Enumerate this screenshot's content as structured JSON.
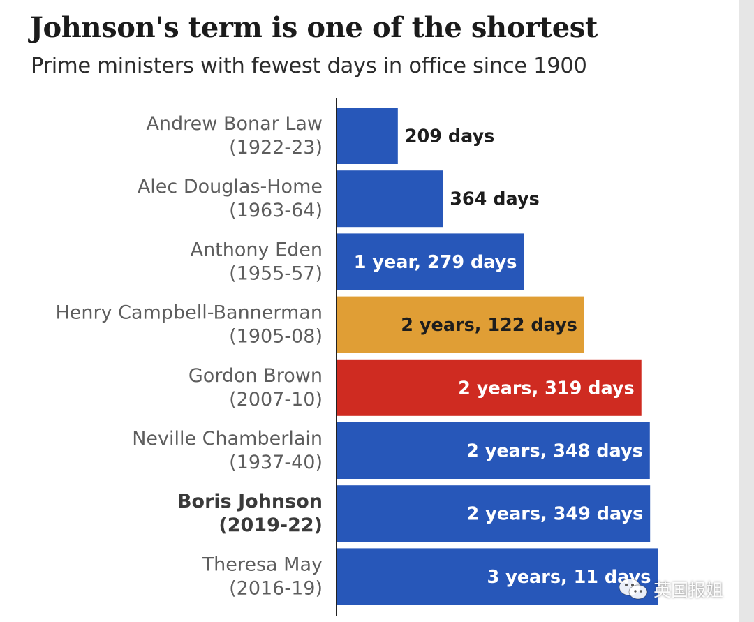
{
  "title": "Johnson's term is one of the shortest",
  "subtitle": "Prime ministers with fewest days in office since 1900",
  "colors": {
    "blue": "#2757b9",
    "amber": "#e09e35",
    "red": "#cf2b21",
    "axis": "#222222",
    "label_dark": "#1d1d1d",
    "label_light": "#ffffff"
  },
  "watermark": {
    "icon": "wechat-logo-icon",
    "text": "英国报姐"
  },
  "chart_data": {
    "type": "bar",
    "orientation": "horizontal",
    "unit": "days",
    "xlim": [
      0,
      1300
    ],
    "grid": false,
    "categories": [
      {
        "name": "Andrew Bonar Law",
        "period": "(1922-23)",
        "days": 209,
        "label": "209 days",
        "color": "#2757b9",
        "highlight": false
      },
      {
        "name": "Alec Douglas-Home",
        "period": "(1963-64)",
        "days": 364,
        "label": "364 days",
        "color": "#2757b9",
        "highlight": false
      },
      {
        "name": "Anthony Eden",
        "period": "(1955-57)",
        "days": 644,
        "label": "1 year, 279 days",
        "color": "#2757b9",
        "highlight": false
      },
      {
        "name": "Henry Campbell-Bannerman",
        "period": "(1905-08)",
        "days": 852,
        "label": "2 years, 122 days",
        "color": "#e09e35",
        "highlight": false
      },
      {
        "name": "Gordon Brown",
        "period": "(2007-10)",
        "days": 1049,
        "label": "2 years, 319 days",
        "color": "#cf2b21",
        "highlight": false
      },
      {
        "name": "Neville Chamberlain",
        "period": "(1937-40)",
        "days": 1078,
        "label": "2 years, 348 days",
        "color": "#2757b9",
        "highlight": false
      },
      {
        "name": "Boris Johnson",
        "period": "(2019-22)",
        "days": 1079,
        "label": "2 years, 349 days",
        "color": "#2757b9",
        "highlight": true
      },
      {
        "name": "Theresa May",
        "period": "(2016-19)",
        "days": 1106,
        "label": "3 years, 11 days",
        "color": "#2757b9",
        "highlight": false
      }
    ]
  }
}
